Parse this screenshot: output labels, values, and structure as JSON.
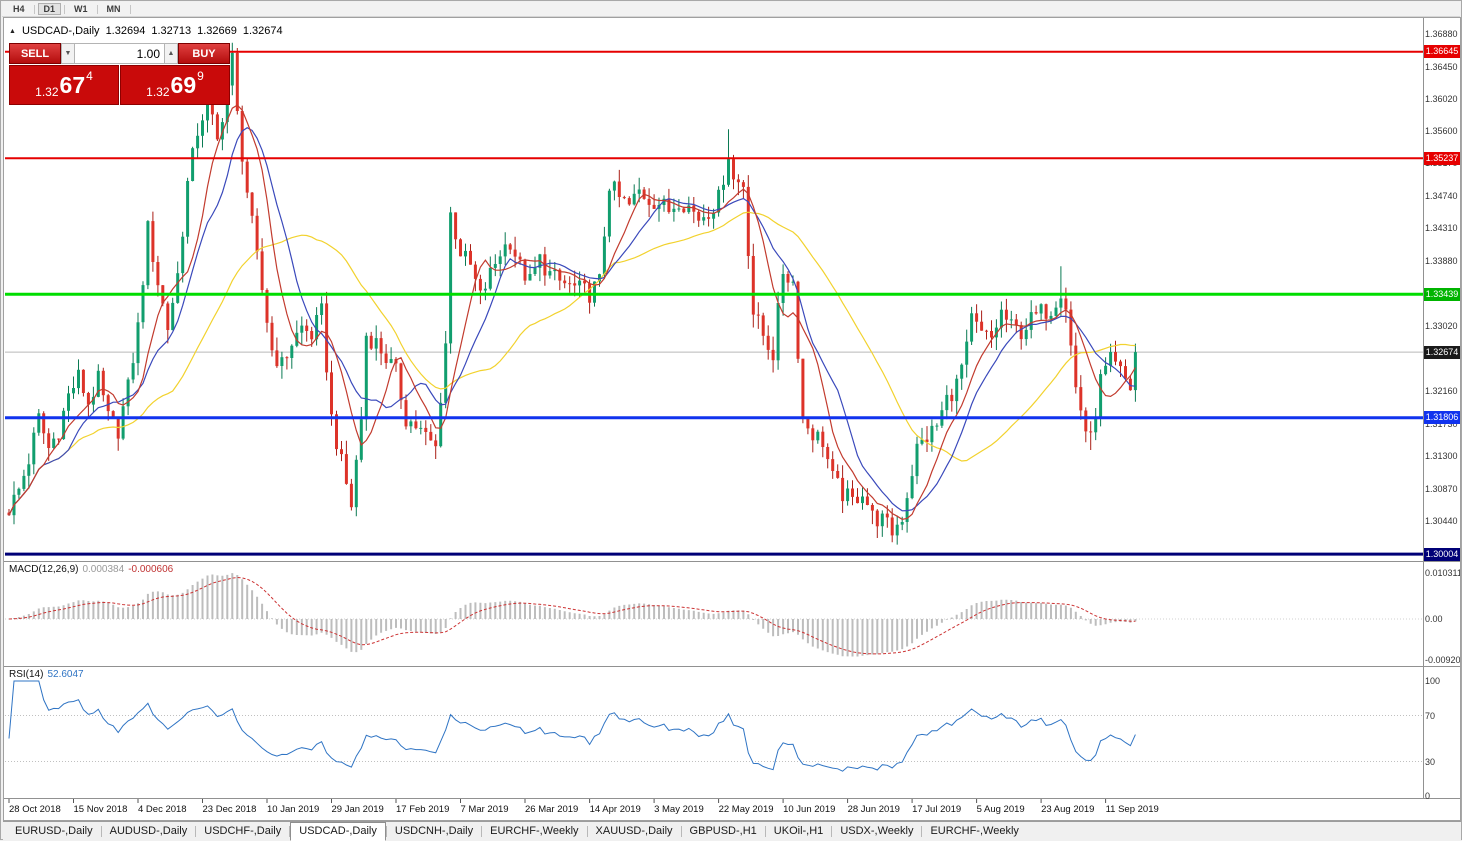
{
  "window": {
    "collapse_icon": "▲",
    "timeframe_buttons": [
      {
        "label": "H4",
        "active": false
      },
      {
        "label": "D1",
        "active": true
      },
      {
        "label": "W1",
        "active": false
      },
      {
        "label": "MN",
        "active": false
      }
    ]
  },
  "chart": {
    "symbol_title": "USDCAD-,Daily",
    "ohlc": {
      "open": "1.32694",
      "high": "1.32713",
      "low": "1.32669",
      "close": "1.32674"
    },
    "trade_panel": {
      "sell_label": "SELL",
      "buy_label": "BUY",
      "volume": "1.00",
      "volume_down_icon": "▼",
      "volume_up_icon": "▲",
      "sell_price": {
        "small": "1.32",
        "big": "67",
        "sup": "4"
      },
      "buy_price": {
        "small": "1.32",
        "big": "69",
        "sup": "9"
      }
    }
  },
  "chart_data": {
    "type": "candlestick",
    "symbol": "USDCAD",
    "period": "Daily",
    "candle_count": 228,
    "last_close": 1.32674,
    "close_anchors": [
      [
        0,
        1.306
      ],
      [
        2,
        1.3085
      ],
      [
        4,
        1.3125
      ],
      [
        6,
        1.318
      ],
      [
        8,
        1.314
      ],
      [
        10,
        1.3165
      ],
      [
        12,
        1.321
      ],
      [
        14,
        1.3235
      ],
      [
        16,
        1.32
      ],
      [
        18,
        1.323
      ],
      [
        20,
        1.318
      ],
      [
        22,
        1.3165
      ],
      [
        24,
        1.322
      ],
      [
        26,
        1.33
      ],
      [
        28,
        1.343
      ],
      [
        30,
        1.336
      ],
      [
        32,
        1.33
      ],
      [
        34,
        1.337
      ],
      [
        36,
        1.349
      ],
      [
        38,
        1.356
      ],
      [
        40,
        1.36
      ],
      [
        42,
        1.3545
      ],
      [
        44,
        1.362
      ],
      [
        45,
        1.3655
      ],
      [
        46,
        1.358
      ],
      [
        47,
        1.353
      ],
      [
        48,
        1.348
      ],
      [
        50,
        1.339
      ],
      [
        52,
        1.331
      ],
      [
        53,
        1.327
      ],
      [
        55,
        1.325
      ],
      [
        57,
        1.328
      ],
      [
        59,
        1.33
      ],
      [
        61,
        1.329
      ],
      [
        63,
        1.332
      ],
      [
        65,
        1.318
      ],
      [
        67,
        1.312
      ],
      [
        69,
        1.3065
      ],
      [
        71,
        1.318
      ],
      [
        72,
        1.329
      ],
      [
        74,
        1.328
      ],
      [
        76,
        1.326
      ],
      [
        78,
        1.324
      ],
      [
        80,
        1.318
      ],
      [
        82,
        1.317
      ],
      [
        84,
        1.3155
      ],
      [
        86,
        1.314
      ],
      [
        88,
        1.328
      ],
      [
        89,
        1.345
      ],
      [
        91,
        1.34
      ],
      [
        93,
        1.338
      ],
      [
        95,
        1.334
      ],
      [
        97,
        1.337
      ],
      [
        99,
        1.34
      ],
      [
        101,
        1.3415
      ],
      [
        103,
        1.338
      ],
      [
        105,
        1.336
      ],
      [
        107,
        1.339
      ],
      [
        109,
        1.337
      ],
      [
        111,
        1.336
      ],
      [
        113,
        1.3355
      ],
      [
        115,
        1.335
      ],
      [
        117,
        1.3345
      ],
      [
        119,
        1.336
      ],
      [
        121,
        1.349
      ],
      [
        123,
        1.347
      ],
      [
        125,
        1.346
      ],
      [
        127,
        1.348
      ],
      [
        129,
        1.347
      ],
      [
        131,
        1.3465
      ],
      [
        133,
        1.3455
      ],
      [
        135,
        1.347
      ],
      [
        137,
        1.346
      ],
      [
        139,
        1.3445
      ],
      [
        141,
        1.3455
      ],
      [
        143,
        1.347
      ],
      [
        145,
        1.353
      ],
      [
        146,
        1.3495
      ],
      [
        148,
        1.349
      ],
      [
        150,
        1.332
      ],
      [
        152,
        1.329
      ],
      [
        154,
        1.3265
      ],
      [
        156,
        1.3375
      ],
      [
        158,
        1.336
      ],
      [
        160,
        1.318
      ],
      [
        162,
        1.316
      ],
      [
        164,
        1.315
      ],
      [
        166,
        1.31
      ],
      [
        168,
        1.308
      ],
      [
        170,
        1.307
      ],
      [
        172,
        1.3085
      ],
      [
        174,
        1.305
      ],
      [
        176,
        1.3045
      ],
      [
        178,
        1.303
      ],
      [
        180,
        1.305
      ],
      [
        182,
        1.311
      ],
      [
        183,
        1.314
      ],
      [
        185,
        1.3155
      ],
      [
        187,
        1.317
      ],
      [
        189,
        1.3205
      ],
      [
        191,
        1.3225
      ],
      [
        193,
        1.327
      ],
      [
        194,
        1.331
      ],
      [
        196,
        1.329
      ],
      [
        198,
        1.3285
      ],
      [
        200,
        1.332
      ],
      [
        202,
        1.33
      ],
      [
        204,
        1.3295
      ],
      [
        206,
        1.331
      ],
      [
        208,
        1.332
      ],
      [
        210,
        1.3325
      ],
      [
        212,
        1.335
      ],
      [
        213,
        1.333
      ],
      [
        215,
        1.322
      ],
      [
        217,
        1.3165
      ],
      [
        218,
        1.315
      ],
      [
        220,
        1.323
      ],
      [
        222,
        1.3255
      ],
      [
        224,
        1.324
      ],
      [
        226,
        1.322
      ],
      [
        227,
        1.32674
      ]
    ],
    "forced_highs": [
      [
        45,
        1.3666
      ],
      [
        145,
        1.3562
      ],
      [
        212,
        1.3381
      ]
    ],
    "forced_lows": [
      [
        69,
        1.3058
      ],
      [
        178,
        1.3016
      ],
      [
        218,
        1.3138
      ]
    ],
    "noise": {
      "body": 0.0026,
      "wick": 0.0018
    },
    "candle_colors": {
      "up": "#119e6e",
      "up_border": "#0b7a53",
      "down": "#dd3329",
      "down_border": "#aa1f17"
    },
    "moving_averages": [
      {
        "period": 34,
        "color": "#f2d22e"
      },
      {
        "period": 13,
        "color": "#3a49bb"
      },
      {
        "period": 8,
        "color": "#c23b2e"
      }
    ],
    "price_axis": {
      "ref_price": 1.3688,
      "ticks": [
        "1.36880",
        "1.36450",
        "1.36020",
        "1.35600",
        "1.35170",
        "1.34740",
        "1.34310",
        "1.33880",
        "1.33020",
        "1.32160",
        "1.31730",
        "1.31300",
        "1.30870",
        "1.30440"
      ]
    },
    "level_lines": [
      {
        "price": 1.36645,
        "label": "1.36645",
        "color": "#e60000",
        "width": 2
      },
      {
        "price": 1.35237,
        "label": "1.35237",
        "color": "#e60000",
        "width": 2
      },
      {
        "price": 1.33439,
        "label": "1.33439",
        "color": "#00dd00",
        "width": 3
      },
      {
        "price": 1.31806,
        "label": "1.31806",
        "color": "#1133ee",
        "width": 3
      },
      {
        "price": 1.30004,
        "label": "1.30004",
        "color": "#000077",
        "width": 3
      }
    ],
    "current_price": {
      "value": 1.32674,
      "label": "1.32674",
      "badge_color": "#1a1a1a",
      "line_color": "#b9b9b9"
    },
    "x_axis": {
      "candles_per_label": 13,
      "labels": [
        "28 Oct 2018",
        "15 Nov 2018",
        "4 Dec 2018",
        "23 Dec 2018",
        "10 Jan 2019",
        "29 Jan 2019",
        "17 Feb 2019",
        "7 Mar 2019",
        "26 Mar 2019",
        "14 Apr 2019",
        "3 May 2019",
        "22 May 2019",
        "10 Jun 2019",
        "28 Jun 2019",
        "17 Jul 2019",
        "5 Aug 2019",
        "23 Aug 2019",
        "11 Sep 2019"
      ]
    },
    "macd": {
      "name": "MACD(12,26,9)",
      "value_main": "0.000384",
      "value_signal": "-0.000606",
      "fast": 12,
      "slow": 26,
      "signal": 9,
      "histogram_color": "#bdbdbd",
      "signal_color": "#cc3333",
      "scale_labels": [
        {
          "text": "0.010311",
          "value": 0.010311
        },
        {
          "text": "0.00",
          "value": 0
        },
        {
          "text": "-0.00920",
          "value": -0.0092
        }
      ]
    },
    "rsi": {
      "name": "RSI(14)",
      "value": "52.6047",
      "period": 14,
      "line_color": "#2f74c4",
      "level_lines": [
        70,
        30
      ],
      "scale_labels": [
        {
          "text": "100",
          "value": 100
        },
        {
          "text": "70",
          "value": 70
        },
        {
          "text": "30",
          "value": 30
        },
        {
          "text": "0",
          "value": 0
        }
      ]
    }
  },
  "tabs": [
    {
      "label": "EURUSD-,Daily",
      "active": false
    },
    {
      "label": "AUDUSD-,Daily",
      "active": false
    },
    {
      "label": "USDCHF-,Daily",
      "active": false
    },
    {
      "label": "USDCAD-,Daily",
      "active": true
    },
    {
      "label": "USDCNH-,Daily",
      "active": false
    },
    {
      "label": "EURCHF-,Weekly",
      "active": false
    },
    {
      "label": "XAUUSD-,Daily",
      "active": false
    },
    {
      "label": "GBPUSD-,H1",
      "active": false
    },
    {
      "label": "UKOil-,H1",
      "active": false
    },
    {
      "label": "USDX-,Weekly",
      "active": false
    },
    {
      "label": "EURCHF-,Weekly",
      "active": false
    }
  ]
}
